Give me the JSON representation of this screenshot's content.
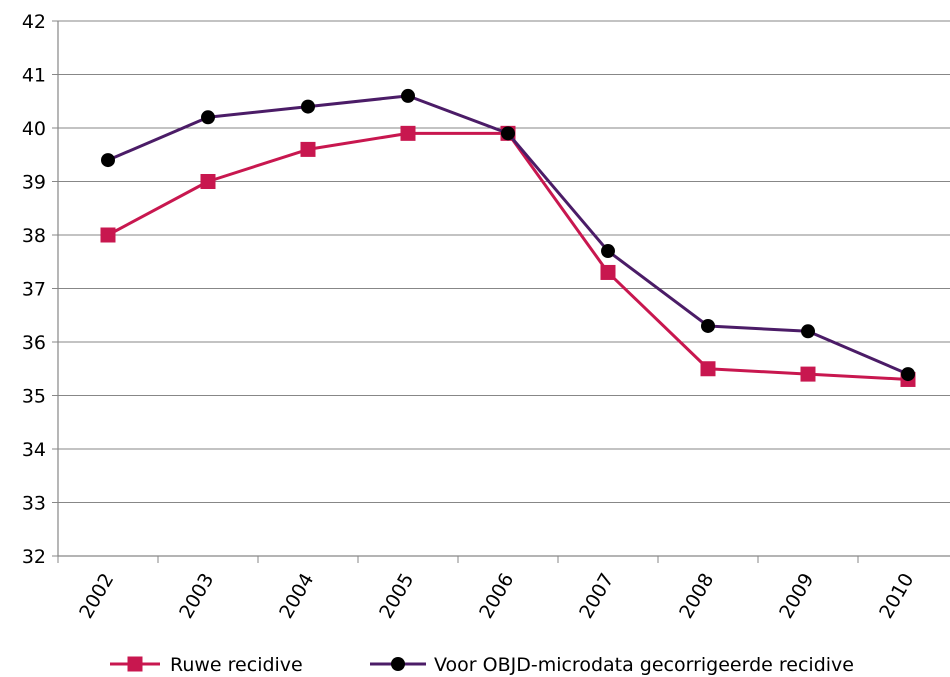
{
  "chart_data": {
    "type": "line",
    "title": "",
    "xlabel": "",
    "ylabel": "",
    "x": [
      "2002",
      "2003",
      "2004",
      "2005",
      "2006",
      "2007",
      "2008",
      "2009",
      "2010"
    ],
    "ylim": [
      32,
      42
    ],
    "yticks": [
      32,
      33,
      34,
      35,
      36,
      37,
      38,
      39,
      40,
      41,
      42
    ],
    "grid": true,
    "legend_position": "bottom",
    "series": [
      {
        "name": "Ruwe recidive",
        "color": "#C8174F",
        "marker": "square",
        "values": [
          38.0,
          39.0,
          39.6,
          39.9,
          39.9,
          37.3,
          35.5,
          35.4,
          35.3
        ]
      },
      {
        "name": "Voor OBJD-microdata gecorrigeerde recidive",
        "color": "#4B1C67",
        "marker": "circle",
        "values": [
          39.4,
          40.2,
          40.4,
          40.6,
          39.9,
          37.7,
          36.3,
          36.2,
          35.4
        ]
      }
    ]
  }
}
